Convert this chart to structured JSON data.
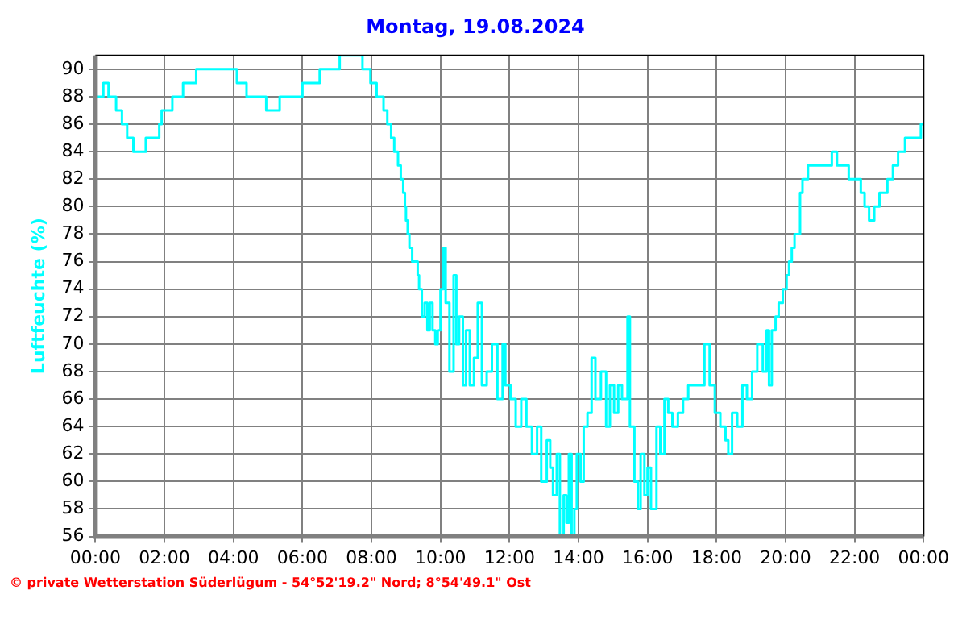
{
  "chart_data": {
    "type": "step",
    "title": "Montag, 19.08.2024",
    "ylabel": "Luftfeuchte (%)",
    "annotations": [
      "© private Wetterstation Süderlügum - 54°52'19.2\" Nord; 8°54'49.1\" Ost"
    ],
    "series": [
      {
        "color": "#00ffff",
        "x": [
          0,
          0.23,
          0.38,
          0.6,
          0.77,
          0.92,
          1.1,
          1.46,
          1.85,
          1.92,
          2.23,
          2.54,
          2.92,
          4.1,
          4.38,
          4.95,
          5.34,
          6.0,
          6.5,
          7.08,
          7.74,
          7.97,
          8.15,
          8.35,
          8.46,
          8.57,
          8.66,
          8.77,
          8.85,
          8.92,
          8.97,
          9.0,
          9.05,
          9.1,
          9.18,
          9.34,
          9.38,
          9.46,
          9.54,
          9.62,
          9.69,
          9.77,
          9.85,
          9.92,
          10.0,
          10.08,
          10.15,
          10.26,
          10.38,
          10.46,
          10.54,
          10.65,
          10.74,
          10.85,
          10.97,
          11.08,
          11.2,
          11.34,
          11.49,
          11.65,
          11.8,
          11.88,
          12.03,
          12.18,
          12.34,
          12.49,
          12.65,
          12.8,
          12.92,
          13.08,
          13.18,
          13.26,
          13.37,
          13.46,
          13.57,
          13.65,
          13.72,
          13.8,
          13.88,
          13.95,
          14.06,
          14.15,
          14.26,
          14.38,
          14.49,
          14.65,
          14.8,
          14.91,
          15.03,
          15.15,
          15.26,
          15.42,
          15.49,
          15.62,
          15.72,
          15.8,
          15.91,
          16.0,
          16.1,
          16.26,
          16.37,
          16.49,
          16.6,
          16.72,
          16.88,
          17.03,
          17.18,
          17.49,
          17.65,
          17.8,
          17.95,
          18.11,
          18.26,
          18.34,
          18.45,
          18.6,
          18.75,
          18.88,
          19.03,
          19.18,
          19.34,
          19.45,
          19.52,
          19.6,
          19.71,
          19.8,
          19.92,
          20.03,
          20.1,
          20.18,
          20.26,
          20.42,
          20.49,
          20.65,
          20.8,
          21.34,
          21.49,
          21.83,
          22.18,
          22.29,
          22.42,
          22.57,
          22.72,
          22.95,
          23.11,
          23.26,
          23.46,
          23.92,
          24
        ],
        "values": [
          88,
          89,
          88,
          87,
          86,
          85,
          84,
          85,
          86,
          87,
          88,
          89,
          90,
          89,
          88,
          87,
          88,
          89,
          90,
          91,
          90,
          89,
          88,
          87,
          86,
          85,
          84,
          83,
          82,
          81,
          80,
          79,
          78,
          77,
          76,
          75,
          74,
          72,
          73,
          71,
          73,
          71,
          70,
          71,
          74,
          77,
          73,
          68,
          75,
          70,
          72,
          67,
          71,
          67,
          69,
          73,
          67,
          68,
          70,
          66,
          70,
          67,
          66,
          64,
          66,
          64,
          62,
          64,
          60,
          63,
          61,
          59,
          62,
          56,
          59,
          57,
          62,
          56,
          58,
          62,
          60,
          64,
          65,
          69,
          66,
          68,
          64,
          67,
          65,
          67,
          66,
          72,
          64,
          60,
          58,
          62,
          59,
          61,
          58,
          64,
          62,
          66,
          65,
          64,
          65,
          66,
          67,
          67,
          70,
          67,
          65,
          64,
          63,
          62,
          65,
          64,
          67,
          66,
          68,
          70,
          68,
          71,
          67,
          71,
          72,
          73,
          74,
          75,
          76,
          77,
          78,
          81,
          82,
          83,
          83,
          84,
          83,
          82,
          81,
          80,
          79,
          80,
          81,
          82,
          83,
          84,
          85,
          86,
          86
        ]
      }
    ],
    "xlim": [
      0,
      24
    ],
    "xticks": [
      {
        "value": 0,
        "label": "00:00"
      },
      {
        "value": 2,
        "label": "02:00"
      },
      {
        "value": 4,
        "label": "04:00"
      },
      {
        "value": 6,
        "label": "06:00"
      },
      {
        "value": 8,
        "label": "08:00"
      },
      {
        "value": 10,
        "label": "10:00"
      },
      {
        "value": 12,
        "label": "12:00"
      },
      {
        "value": 14,
        "label": "14:00"
      },
      {
        "value": 16,
        "label": "16:00"
      },
      {
        "value": 18,
        "label": "18:00"
      },
      {
        "value": 20,
        "label": "20:00"
      },
      {
        "value": 22,
        "label": "22:00"
      },
      {
        "value": 24,
        "label": "00:00"
      }
    ],
    "ylim": [
      56,
      91
    ],
    "yticks": [
      56,
      58,
      60,
      62,
      64,
      66,
      68,
      70,
      72,
      74,
      76,
      78,
      80,
      82,
      84,
      86,
      88,
      90
    ],
    "grid": true,
    "legend": false,
    "line_style": "solid",
    "marker": "none"
  }
}
